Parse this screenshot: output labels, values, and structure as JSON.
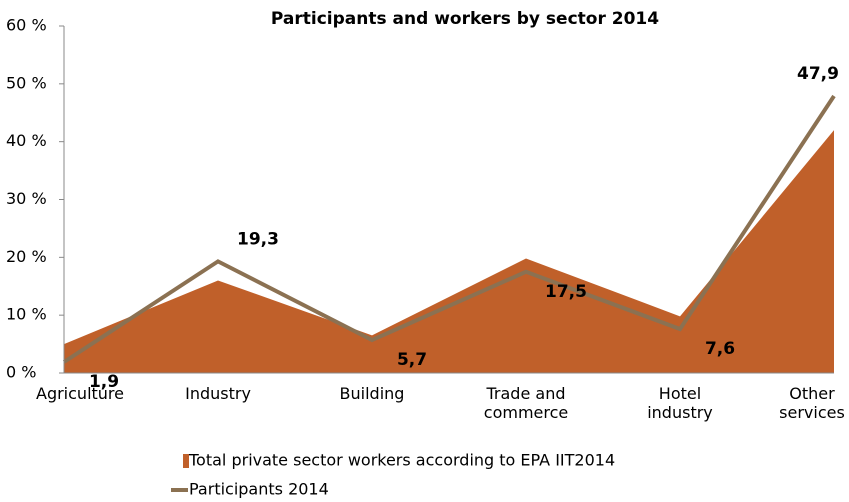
{
  "chart_data": {
    "type": "area_line",
    "title": "Participants and workers by sector 2014",
    "categories": [
      "Agriculture",
      "Industry",
      "Building",
      "Trade and\ncommerce",
      "Hotel\nindustry",
      "Other\nservices"
    ],
    "series": [
      {
        "name": "Total private sector workers according to EPA IIT2014",
        "type": "area",
        "color": "#c0602a",
        "values": [
          5,
          16,
          6.5,
          19.8,
          9.8,
          42
        ]
      },
      {
        "name": "Participants 2014",
        "type": "line",
        "color": "#8b7152",
        "values": [
          1.9,
          19.3,
          5.7,
          17.5,
          7.6,
          47.9
        ],
        "value_labels": [
          "1,9",
          "19,3",
          "5,7",
          "17,5",
          "7,6",
          "47,9"
        ]
      }
    ],
    "ylim": [
      0,
      60
    ],
    "yticks": [
      {
        "value": 0,
        "label": "0 %"
      },
      {
        "value": 10,
        "label": "10 %"
      },
      {
        "value": 20,
        "label": "20 %"
      },
      {
        "value": 30,
        "label": "30 %"
      },
      {
        "value": 40,
        "label": "40 %"
      },
      {
        "value": 50,
        "label": "50 %"
      },
      {
        "value": 60,
        "label": "60 %"
      }
    ]
  }
}
